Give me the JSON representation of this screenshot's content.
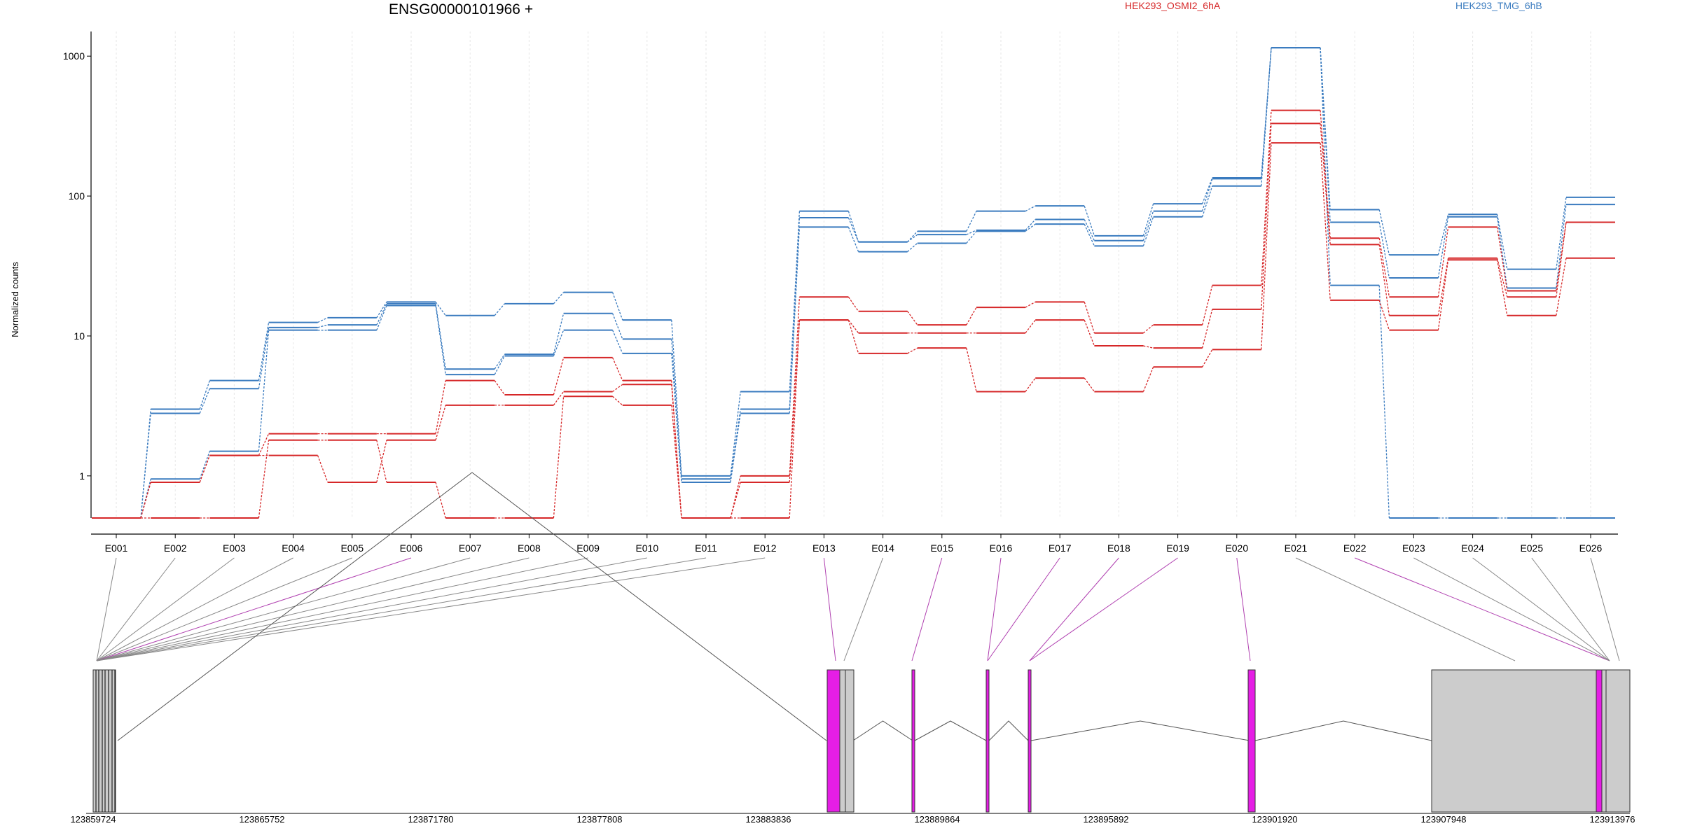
{
  "chart_data": {
    "type": "line",
    "title": "ENSG00000101966 +",
    "ylabel": "Normalized counts",
    "yscale": "log",
    "ylim": [
      0.5,
      1500
    ],
    "yticks": [
      1,
      10,
      100,
      1000
    ],
    "ytick_labels": [
      "1",
      "10",
      "100",
      "1000"
    ],
    "categories": [
      "E001",
      "E002",
      "E003",
      "E004",
      "E005",
      "E006",
      "E007",
      "E008",
      "E009",
      "E010",
      "E011",
      "E012",
      "E013",
      "E014",
      "E015",
      "E016",
      "E017",
      "E018",
      "E019",
      "E020",
      "E021",
      "E022",
      "E023",
      "E024",
      "E025",
      "E026"
    ],
    "legend": [
      {
        "name": "HEK293_OSMI2_6hA",
        "color": "#d62728"
      },
      {
        "name": "HEK293_TMG_6hB",
        "color": "#3a7bbf"
      }
    ],
    "series": [
      {
        "group": "HEK293_TMG_6hB",
        "color": "#3a7bbf",
        "values": [
          0.5,
          3.0,
          4.8,
          12.5,
          13.5,
          17.5,
          14.0,
          17.0,
          20.5,
          13.0,
          1.0,
          4.0,
          78,
          47,
          56,
          78,
          85,
          52,
          88,
          135,
          1150,
          80,
          38,
          74,
          30,
          98
        ]
      },
      {
        "group": "HEK293_TMG_6hB",
        "color": "#3a7bbf",
        "values": [
          0.5,
          2.8,
          4.2,
          11.5,
          12.0,
          17.0,
          5.8,
          7.4,
          14.5,
          9.5,
          0.95,
          3.0,
          70,
          47,
          53,
          57,
          68,
          48,
          78,
          133,
          1150,
          65,
          26,
          71,
          22,
          87
        ]
      },
      {
        "group": "HEK293_TMG_6hB",
        "color": "#3a7bbf",
        "values": [
          0.5,
          0.95,
          1.5,
          11.0,
          11.0,
          16.5,
          5.3,
          7.2,
          11.0,
          7.5,
          0.9,
          2.8,
          60,
          40,
          46,
          56,
          63,
          44,
          71,
          118,
          1150,
          23,
          0.5,
          0.5,
          0.5,
          0.5
        ]
      },
      {
        "group": "HEK293_OSMI2_6hA",
        "color": "#d62728",
        "values": [
          0.5,
          0.9,
          1.4,
          2.0,
          2.0,
          2.0,
          4.8,
          3.8,
          7.0,
          4.8,
          0.5,
          1.0,
          19,
          15,
          12,
          16,
          17.5,
          10.5,
          12,
          23,
          410,
          50,
          19,
          60,
          21,
          65
        ]
      },
      {
        "group": "HEK293_OSMI2_6hA",
        "color": "#d62728",
        "values": [
          0.5,
          0.9,
          1.4,
          1.4,
          0.9,
          1.8,
          3.2,
          3.2,
          4.0,
          4.5,
          0.5,
          0.9,
          13,
          10.5,
          10.5,
          10.5,
          13,
          8.5,
          8.2,
          15.5,
          330,
          45,
          14,
          36,
          19,
          65
        ]
      },
      {
        "group": "HEK293_OSMI2_6hA",
        "color": "#d62728",
        "values": [
          0.5,
          0.5,
          0.5,
          1.8,
          1.8,
          0.9,
          0.5,
          0.5,
          3.7,
          3.2,
          0.5,
          0.5,
          13,
          7.5,
          8.2,
          4.0,
          5.0,
          4.0,
          6.0,
          8.0,
          240,
          18,
          11,
          35,
          14,
          36
        ]
      }
    ],
    "gene_model": {
      "coordinate_labels": [
        "123859724",
        "123865752",
        "123871780",
        "123877808",
        "123883836",
        "123889864",
        "123895892",
        "123901920",
        "123907948",
        "123913976"
      ],
      "highlight_color": "#e51ee5",
      "exon_color": "#cccccc"
    }
  }
}
